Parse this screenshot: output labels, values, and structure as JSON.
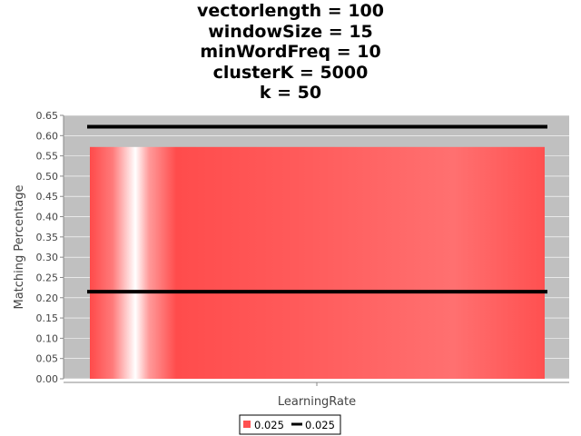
{
  "chart_data": {
    "type": "bar",
    "title_lines": [
      "vectorlength = 100",
      "windowSize = 15",
      "minWordFreq = 10",
      "clusterK = 5000",
      "k = 50"
    ],
    "xlabel": "LearningRate",
    "ylabel": "Matching Percentage",
    "ylim": [
      0,
      0.65
    ],
    "yticks": [
      "0.00",
      "0.05",
      "0.10",
      "0.15",
      "0.20",
      "0.25",
      "0.30",
      "0.35",
      "0.40",
      "0.45",
      "0.50",
      "0.55",
      "0.60",
      "0.65"
    ],
    "categories": [
      ""
    ],
    "series": [
      {
        "name": "0.025",
        "kind": "bar",
        "values": [
          0.572
        ]
      }
    ],
    "interval": {
      "name": "0.025",
      "low": 0.215,
      "high": 0.622
    },
    "legend": [
      "0.025",
      "0.025"
    ],
    "legend_position": "bottom",
    "grid": true,
    "colors": {
      "bar": "#ff5050",
      "plot_bg": "#c0c0c0",
      "interval_line": "#000000"
    }
  }
}
